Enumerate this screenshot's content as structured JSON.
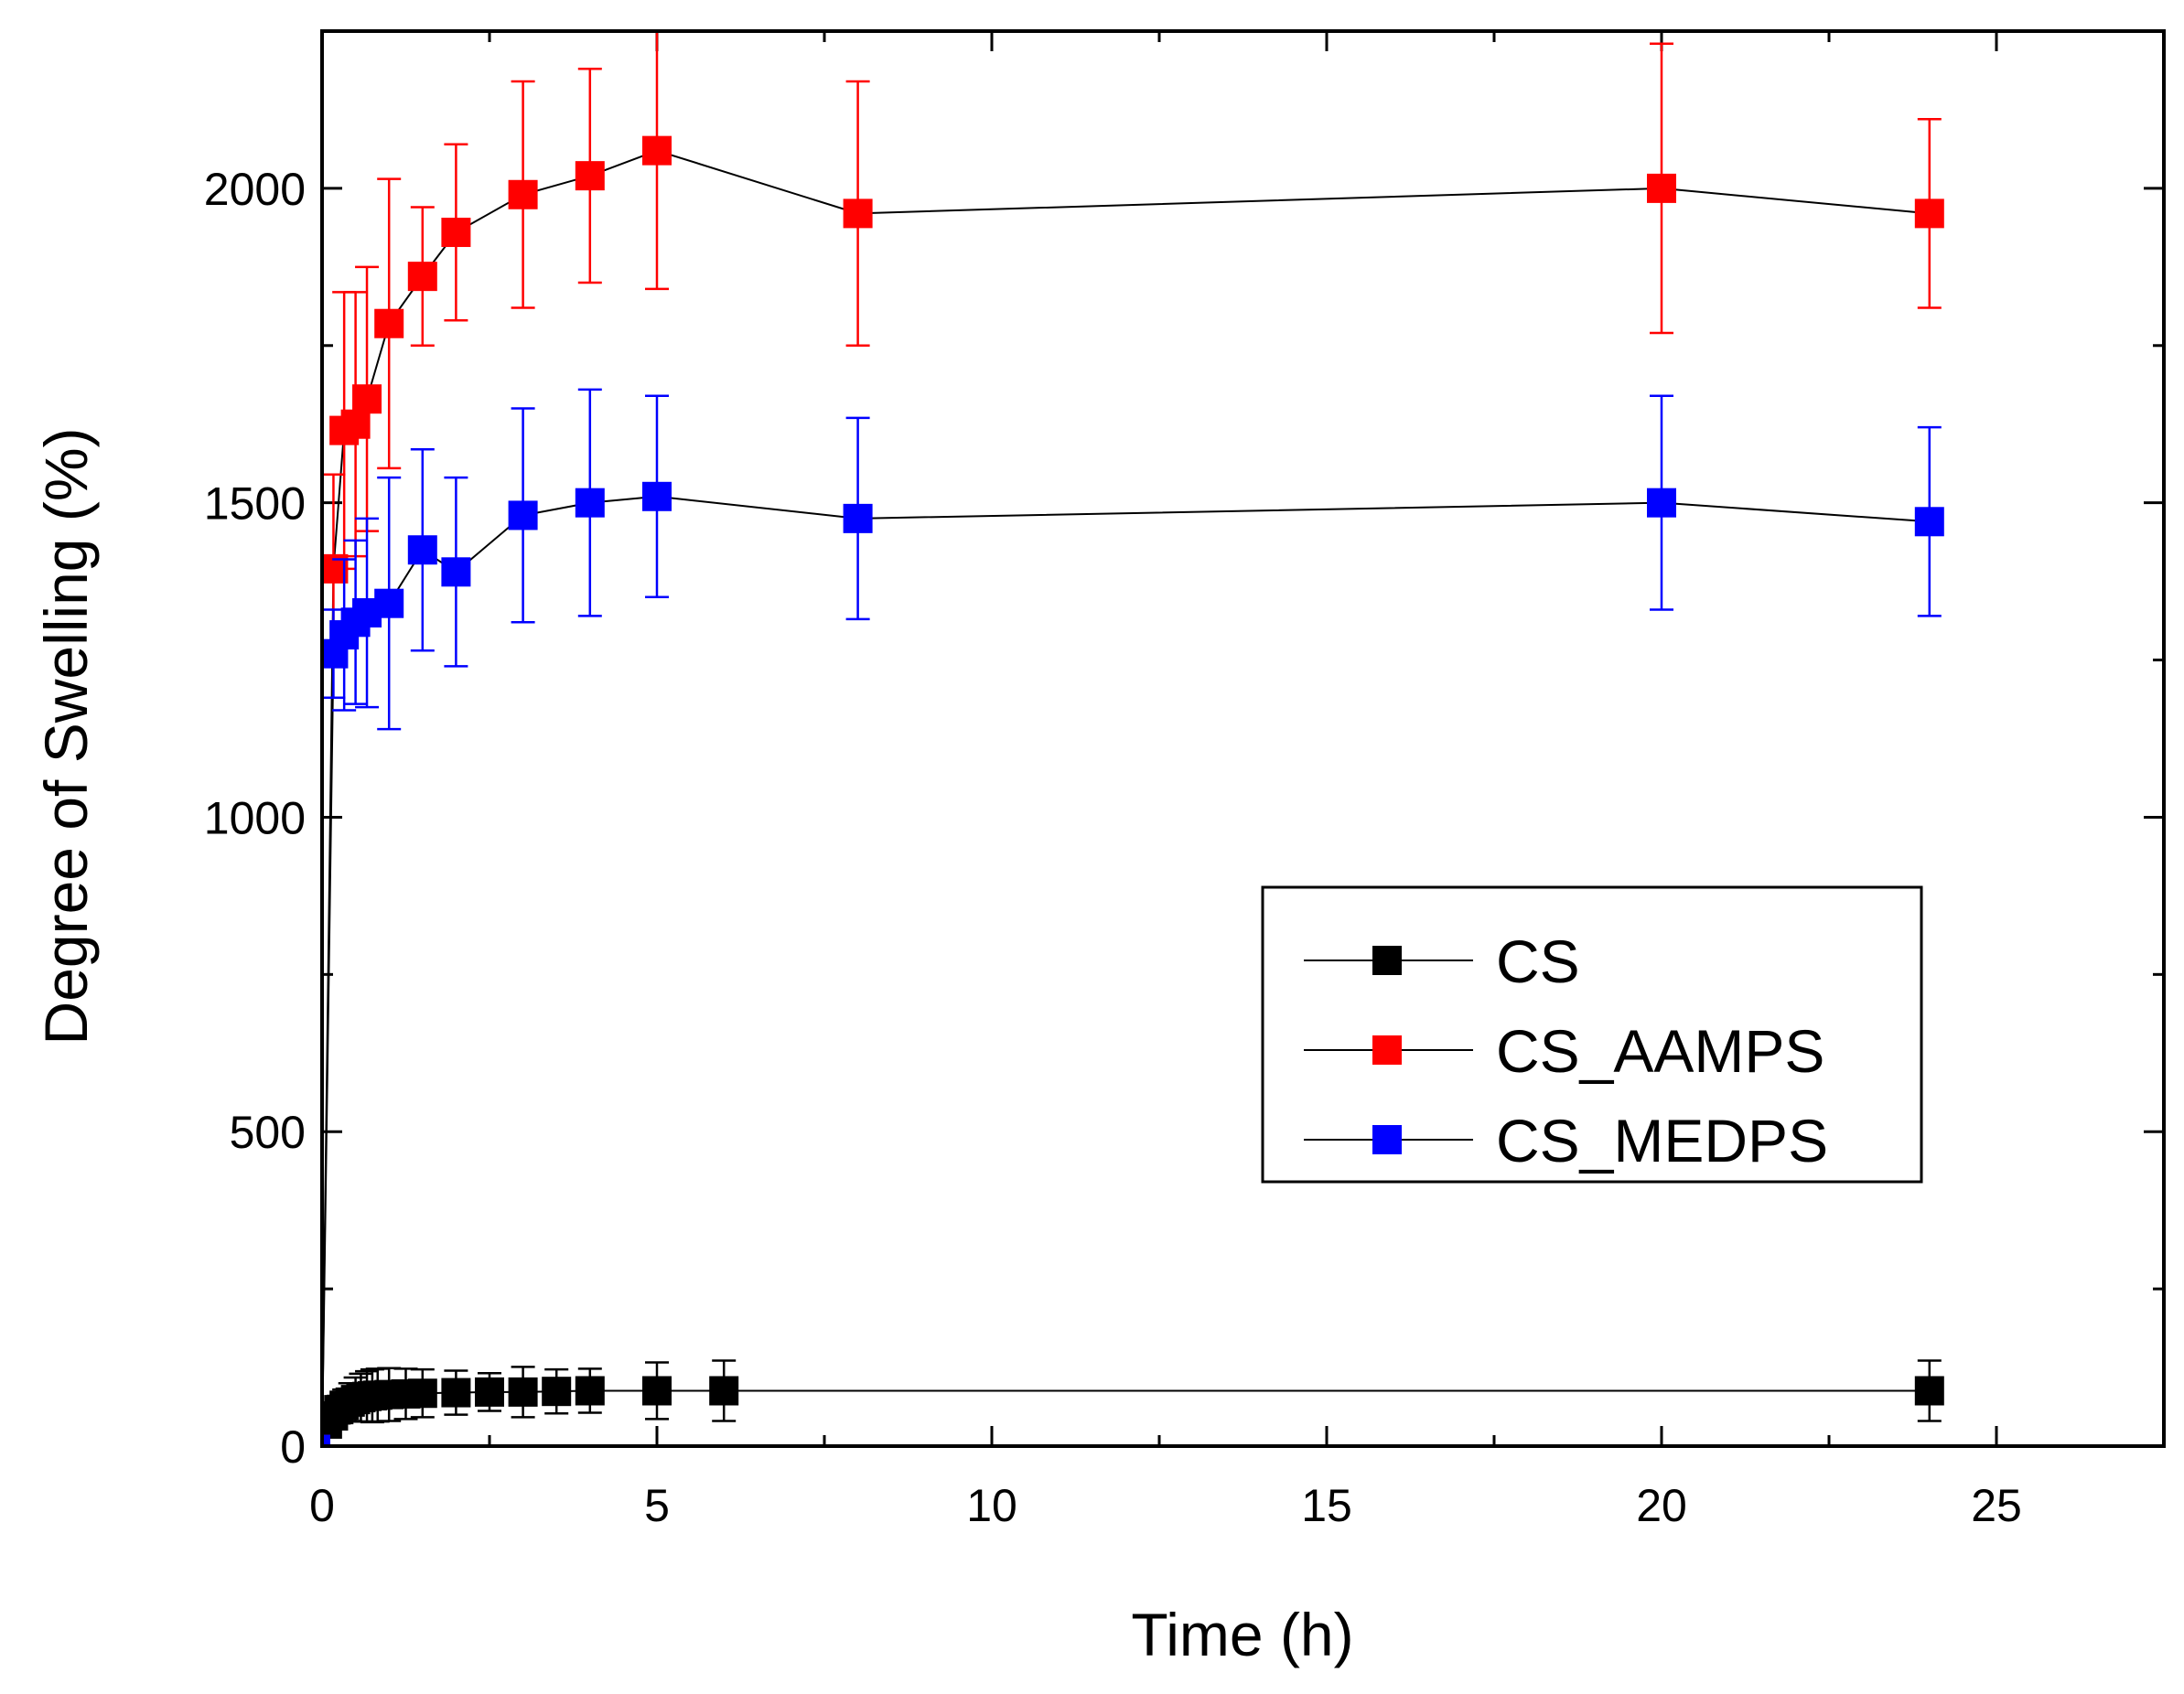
{
  "chart_data": {
    "type": "scatter",
    "xlabel": "Time (h)",
    "ylabel": "Degree of Swelling (%)",
    "xlim": [
      0,
      27.5
    ],
    "ylim": [
      0,
      2250
    ],
    "x_ticks": [
      0,
      5,
      10,
      15,
      20,
      25
    ],
    "y_ticks": [
      0,
      500,
      1000,
      1500,
      2000
    ],
    "legend_position": "center-right",
    "series": [
      {
        "name": "CS",
        "color": "#000000",
        "x": [
          0.0,
          0.08,
          0.17,
          0.25,
          0.33,
          0.42,
          0.5,
          0.58,
          0.67,
          0.75,
          0.83,
          1.0,
          1.25,
          1.5,
          2.0,
          2.5,
          3.0,
          3.5,
          4.0,
          5.0,
          6.0,
          24.0
        ],
        "y": [
          5,
          35,
          48,
          58,
          65,
          70,
          74,
          77,
          79,
          80,
          81,
          82,
          83,
          84,
          85,
          86,
          86,
          87,
          88,
          88,
          88,
          88
        ],
        "err": [
          0,
          12,
          18,
          22,
          25,
          30,
          35,
          38,
          40,
          42,
          42,
          42,
          40,
          38,
          35,
          30,
          40,
          35,
          35,
          45,
          48,
          48
        ]
      },
      {
        "name": "CS_AAMPS",
        "color": "#ff0000",
        "x": [
          0.0,
          0.17,
          0.33,
          0.5,
          0.67,
          1.0,
          1.5,
          2.0,
          3.0,
          4.0,
          5.0,
          8.0,
          20.0,
          24.0
        ],
        "y": [
          5,
          1395,
          1615,
          1625,
          1665,
          1785,
          1860,
          1930,
          1990,
          2020,
          2060,
          1960,
          2000,
          1960
        ],
        "err": [
          0,
          150,
          220,
          210,
          210,
          230,
          110,
          140,
          180,
          170,
          220,
          210,
          230,
          150
        ]
      },
      {
        "name": "CS_MEDPS",
        "color": "#0000ff",
        "x": [
          0.0,
          0.17,
          0.33,
          0.5,
          0.67,
          1.0,
          1.5,
          2.0,
          3.0,
          4.0,
          5.0,
          8.0,
          20.0,
          24.0
        ],
        "y": [
          5,
          1260,
          1290,
          1310,
          1325,
          1340,
          1425,
          1390,
          1480,
          1500,
          1510,
          1475,
          1500,
          1470
        ],
        "err": [
          0,
          70,
          120,
          130,
          150,
          200,
          160,
          150,
          170,
          180,
          160,
          160,
          170,
          150
        ]
      }
    ]
  }
}
